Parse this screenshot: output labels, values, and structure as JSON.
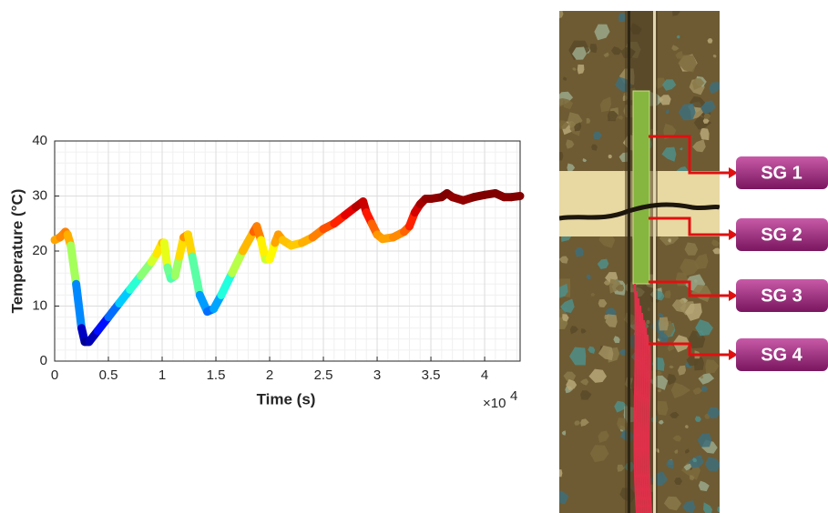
{
  "chart_data": {
    "type": "line",
    "x_label": "Time (s)",
    "y_label": "Temperature (°C)",
    "x_scale_label": {
      "base": "×10",
      "exponent": "4"
    },
    "colormap": "jet",
    "clim": [
      3,
      30
    ],
    "xlim": [
      0,
      4.33
    ],
    "ylim": [
      0,
      40
    ],
    "xticks": [
      0,
      0.5,
      1,
      1.5,
      2,
      2.5,
      3,
      3.5,
      4
    ],
    "yticks": [
      0,
      10,
      20,
      30,
      40
    ],
    "grid": true,
    "minor_grid": true,
    "x": [
      0,
      0.05,
      0.1,
      0.12,
      0.15,
      0.2,
      0.25,
      0.28,
      0.32,
      0.4,
      0.5,
      0.6,
      0.7,
      0.8,
      0.9,
      0.95,
      1.0,
      1.02,
      1.05,
      1.08,
      1.12,
      1.16,
      1.2,
      1.24,
      1.28,
      1.35,
      1.42,
      1.48,
      1.55,
      1.65,
      1.75,
      1.85,
      1.88,
      1.92,
      1.96,
      2.0,
      2.05,
      2.08,
      2.12,
      2.2,
      2.3,
      2.4,
      2.5,
      2.6,
      2.7,
      2.8,
      2.87,
      2.9,
      2.95,
      3.0,
      3.05,
      3.15,
      3.25,
      3.3,
      3.35,
      3.4,
      3.45,
      3.5,
      3.6,
      3.65,
      3.7,
      3.8,
      3.9,
      4.0,
      4.1,
      4.18,
      4.25,
      4.33
    ],
    "values": [
      22,
      22.5,
      23.5,
      23,
      21,
      14,
      6,
      3.5,
      3.5,
      5.5,
      8,
      10.5,
      13,
      15.5,
      18,
      19.5,
      21.5,
      21.5,
      17,
      15,
      15.5,
      19,
      22.5,
      23,
      19,
      12,
      9,
      9.5,
      12,
      16,
      20,
      23.5,
      24.5,
      22,
      18.5,
      18.5,
      21.5,
      23,
      22,
      21,
      21.5,
      22.5,
      24,
      25,
      26.5,
      28,
      29,
      27,
      25,
      23,
      22.2,
      22.5,
      23.5,
      24.5,
      27,
      28.5,
      29.5,
      29.5,
      29.8,
      30.5,
      29.8,
      29.2,
      29.8,
      30.2,
      30.5,
      29.8,
      29.8,
      30
    ]
  },
  "photo": {
    "labels": [
      "SG 1",
      "SG 2",
      "SG 3",
      "SG 4"
    ]
  }
}
